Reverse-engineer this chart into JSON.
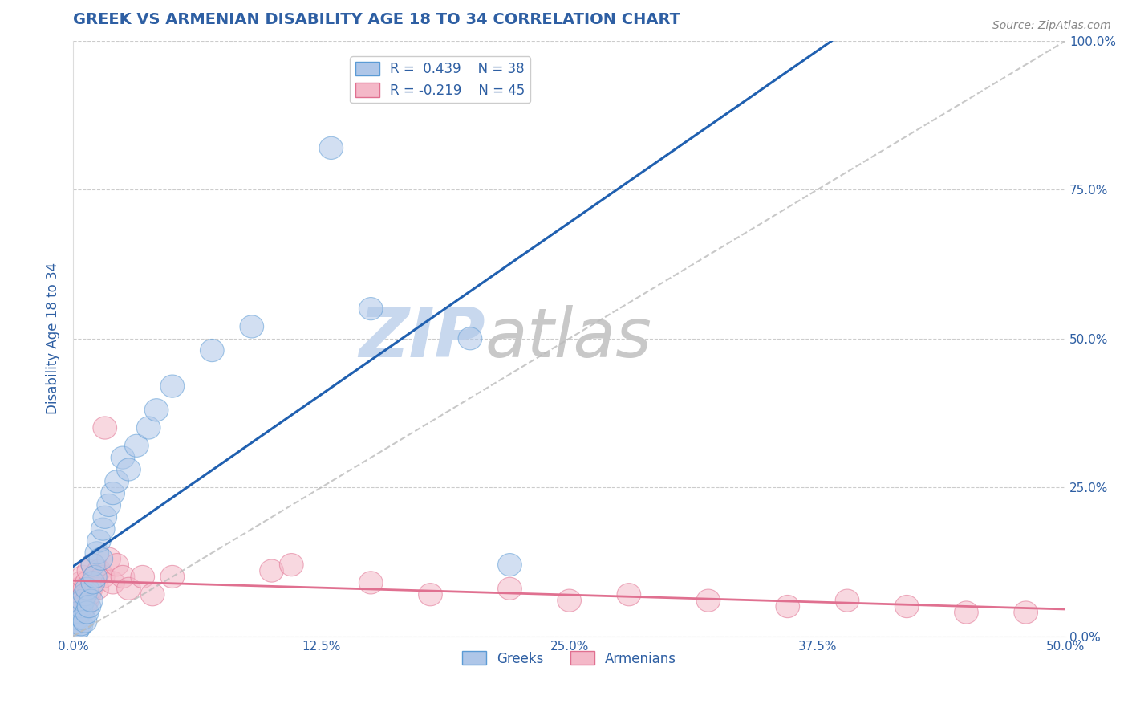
{
  "title": "GREEK VS ARMENIAN DISABILITY AGE 18 TO 34 CORRELATION CHART",
  "source": "Source: ZipAtlas.com",
  "xlim": [
    0,
    0.5
  ],
  "ylim": [
    0,
    1.0
  ],
  "greek_R": 0.439,
  "greek_N": 38,
  "armenian_R": -0.219,
  "armenian_N": 45,
  "greek_color": "#aec6e8",
  "greek_edge_color": "#5b9bd5",
  "armenian_color": "#f4b8c8",
  "armenian_edge_color": "#e07090",
  "trend_greek_color": "#2060b0",
  "trend_armenian_color": "#e07090",
  "ref_line_color": "#bbbbbb",
  "watermark_zip_color": "#c8d8ee",
  "watermark_atlas_color": "#c8c8c8",
  "title_color": "#2e5fa3",
  "axis_label_color": "#2e5fa3",
  "tick_color": "#2e5fa3",
  "legend_text_color": "#2e5fa3",
  "background_color": "#ffffff",
  "greek_x": [
    0.001,
    0.002,
    0.002,
    0.003,
    0.003,
    0.004,
    0.004,
    0.005,
    0.005,
    0.006,
    0.006,
    0.007,
    0.007,
    0.008,
    0.009,
    0.01,
    0.01,
    0.011,
    0.012,
    0.013,
    0.014,
    0.015,
    0.016,
    0.018,
    0.02,
    0.022,
    0.025,
    0.028,
    0.032,
    0.038,
    0.042,
    0.05,
    0.07,
    0.09,
    0.13,
    0.15,
    0.2,
    0.22
  ],
  "greek_y": [
    0.02,
    0.01,
    0.03,
    0.015,
    0.04,
    0.02,
    0.05,
    0.03,
    0.06,
    0.025,
    0.07,
    0.04,
    0.08,
    0.05,
    0.06,
    0.09,
    0.12,
    0.1,
    0.14,
    0.16,
    0.13,
    0.18,
    0.2,
    0.22,
    0.24,
    0.26,
    0.3,
    0.28,
    0.32,
    0.35,
    0.38,
    0.42,
    0.48,
    0.52,
    0.82,
    0.55,
    0.5,
    0.12
  ],
  "armenian_x": [
    0.001,
    0.001,
    0.002,
    0.002,
    0.003,
    0.003,
    0.004,
    0.004,
    0.005,
    0.005,
    0.006,
    0.006,
    0.007,
    0.007,
    0.008,
    0.008,
    0.009,
    0.01,
    0.01,
    0.011,
    0.012,
    0.013,
    0.015,
    0.016,
    0.018,
    0.02,
    0.022,
    0.025,
    0.028,
    0.035,
    0.04,
    0.05,
    0.1,
    0.11,
    0.15,
    0.18,
    0.22,
    0.25,
    0.28,
    0.32,
    0.36,
    0.39,
    0.42,
    0.45,
    0.48
  ],
  "armenian_y": [
    0.045,
    0.06,
    0.04,
    0.07,
    0.05,
    0.08,
    0.04,
    0.09,
    0.06,
    0.1,
    0.05,
    0.08,
    0.06,
    0.09,
    0.07,
    0.11,
    0.08,
    0.09,
    0.12,
    0.1,
    0.08,
    0.11,
    0.1,
    0.35,
    0.13,
    0.09,
    0.12,
    0.1,
    0.08,
    0.1,
    0.07,
    0.1,
    0.11,
    0.12,
    0.09,
    0.07,
    0.08,
    0.06,
    0.07,
    0.06,
    0.05,
    0.06,
    0.05,
    0.04,
    0.04
  ]
}
